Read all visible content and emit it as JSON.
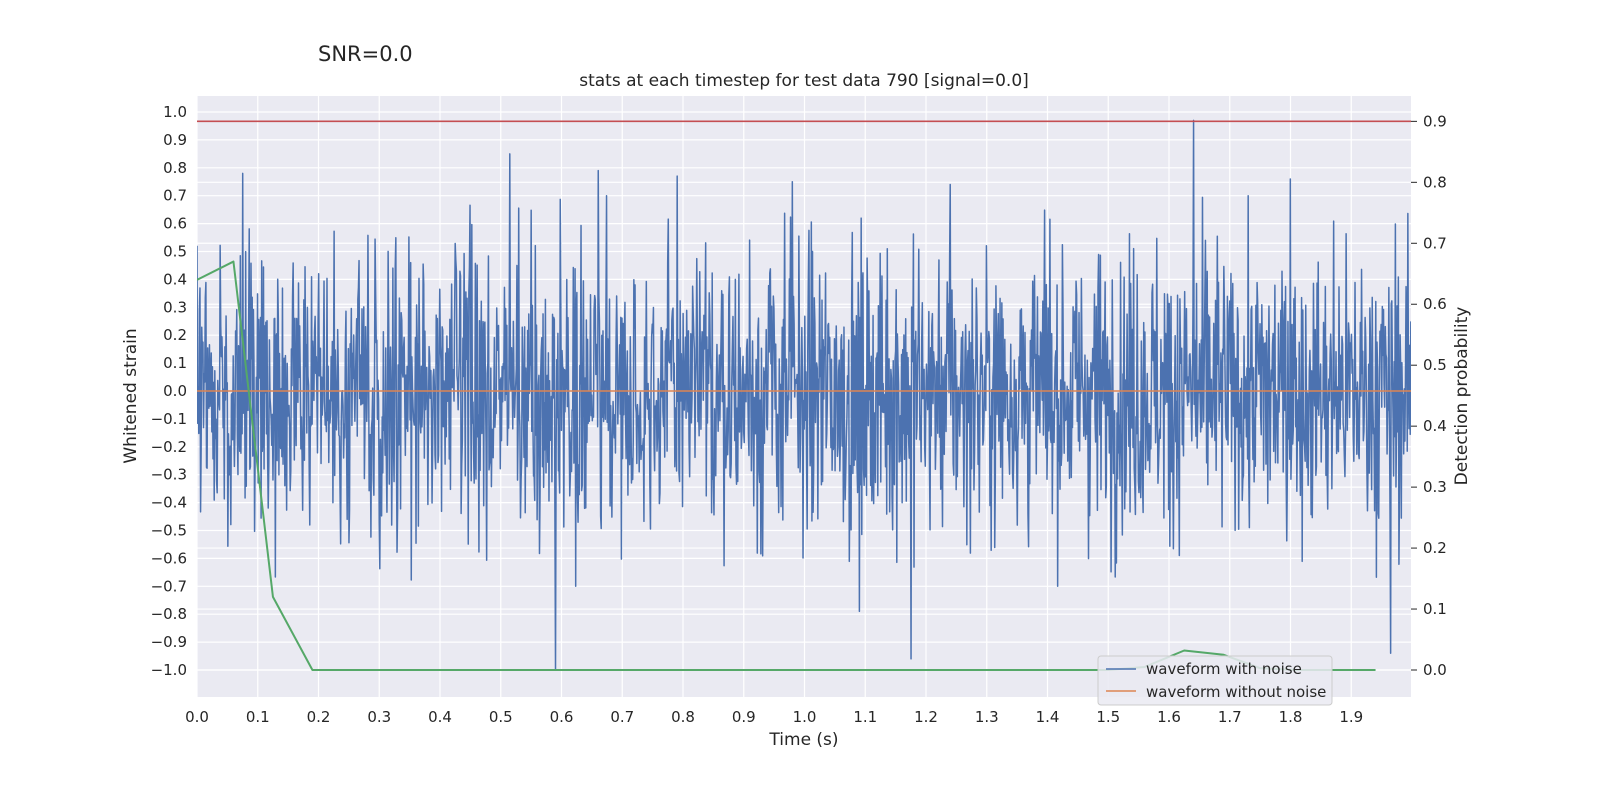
{
  "suptitle": "SNR=0.0",
  "chart_data": {
    "type": "line",
    "title": "stats at each timestep for test data 790 [signal=0.0]",
    "xlabel": "Time (s)",
    "ylabel_left": "Whitened strain",
    "ylabel_right": "Detection probability",
    "xlim": [
      0.0,
      2.0
    ],
    "ylim_left": [
      -1.1,
      1.1
    ],
    "ylim_right": [
      -0.04,
      0.93
    ],
    "xticks": [
      "0.0",
      "0.1",
      "0.2",
      "0.3",
      "0.4",
      "0.5",
      "0.6",
      "0.7",
      "0.8",
      "0.9",
      "1.0",
      "1.1",
      "1.2",
      "1.3",
      "1.4",
      "1.5",
      "1.6",
      "1.7",
      "1.8",
      "1.9"
    ],
    "yticks_left": [
      "1.0",
      "0.9",
      "0.8",
      "0.7",
      "0.6",
      "0.5",
      "0.4",
      "0.3",
      "0.2",
      "0.1",
      "0.0",
      "−0.1",
      "−0.2",
      "−0.3",
      "−0.4",
      "−0.5",
      "−0.6",
      "−0.7",
      "−0.8",
      "−0.9",
      "−1.0"
    ],
    "yticks_right": [
      "0.9",
      "0.8",
      "0.7",
      "0.6",
      "0.5",
      "0.4",
      "0.3",
      "0.2",
      "0.1",
      "0.0"
    ],
    "threshold": {
      "value": 0.9,
      "axis": "right",
      "color": "#c44e52"
    },
    "series": [
      {
        "name": "waveform with noise",
        "axis": "left",
        "color": "#4c72b0",
        "note": "whitened noise, approx. 2048 samples between -1.0 and 0.97; notable extremes listed",
        "amplitude_std": 0.25,
        "n_samples": 2048,
        "peaks": [
          [
            0.075,
            0.78
          ],
          [
            0.515,
            0.85
          ],
          [
            0.59,
            -1.0
          ],
          [
            0.66,
            0.79
          ],
          [
            0.79,
            0.77
          ],
          [
            0.98,
            0.75
          ],
          [
            1.09,
            -0.79
          ],
          [
            1.175,
            -0.96
          ],
          [
            1.24,
            0.74
          ],
          [
            1.64,
            0.97
          ],
          [
            1.8,
            0.76
          ],
          [
            1.965,
            -0.94
          ]
        ]
      },
      {
        "name": "waveform without noise",
        "axis": "left",
        "color": "#dd8452",
        "x": [
          0.0,
          2.0
        ],
        "y": [
          0.0,
          0.0
        ]
      },
      {
        "name": "detection probability",
        "axis": "right",
        "color": "#55a868",
        "x": [
          0.0,
          0.06,
          0.125,
          0.19,
          0.25,
          0.5,
          1.0,
          1.5,
          1.56,
          1.625,
          1.69,
          1.75,
          1.81,
          1.875,
          1.94
        ],
        "y": [
          0.64,
          0.67,
          0.12,
          0.0,
          0.0,
          0.0,
          0.0,
          0.0,
          0.005,
          0.032,
          0.025,
          0.003,
          0.0,
          0.0,
          0.0
        ]
      }
    ],
    "legend": {
      "position": "lower-right",
      "entries": [
        {
          "label": "waveform with noise",
          "color": "#4c72b0"
        },
        {
          "label": "waveform without noise",
          "color": "#dd8452"
        }
      ]
    }
  }
}
